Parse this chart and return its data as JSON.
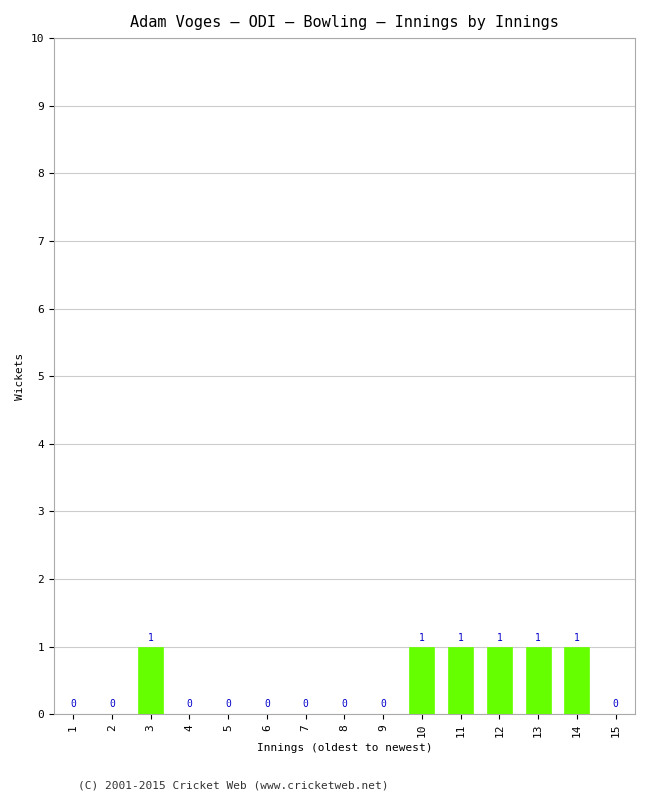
{
  "title": "Adam Voges – ODI – Bowling – Innings by Innings",
  "xlabel": "Innings (oldest to newest)",
  "ylabel": "Wickets",
  "innings": [
    1,
    2,
    3,
    4,
    5,
    6,
    7,
    8,
    9,
    10,
    11,
    12,
    13,
    14,
    15
  ],
  "wickets": [
    0,
    0,
    1,
    0,
    0,
    0,
    0,
    0,
    0,
    1,
    1,
    1,
    1,
    1,
    0
  ],
  "bar_color": "#66ff00",
  "bar_edge_color": "#66ff00",
  "annotation_color": "#0000cc",
  "background_color": "#ffffff",
  "grid_color": "#cccccc",
  "ylim": [
    0,
    10
  ],
  "yticks": [
    0,
    1,
    2,
    3,
    4,
    5,
    6,
    7,
    8,
    9,
    10
  ],
  "xticks": [
    1,
    2,
    3,
    4,
    5,
    6,
    7,
    8,
    9,
    10,
    11,
    12,
    13,
    14,
    15
  ],
  "footer": "(C) 2001-2015 Cricket Web (www.cricketweb.net)",
  "title_fontsize": 11,
  "axis_label_fontsize": 8,
  "tick_fontsize": 8,
  "annotation_fontsize": 7,
  "footer_fontsize": 8
}
